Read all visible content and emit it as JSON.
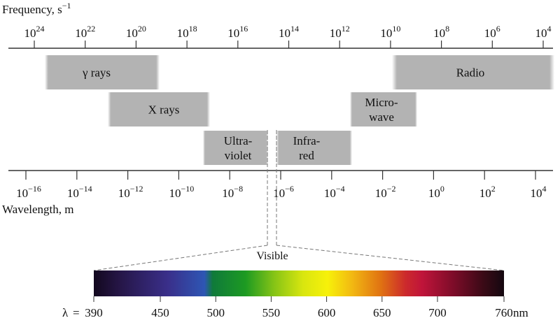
{
  "frequency_axis": {
    "label_main": "Frequency, s",
    "label_exp": "−1",
    "ticks": [
      {
        "base": "10",
        "exp": "24"
      },
      {
        "base": "10",
        "exp": "22"
      },
      {
        "base": "10",
        "exp": "20"
      },
      {
        "base": "10",
        "exp": "18"
      },
      {
        "base": "10",
        "exp": "16"
      },
      {
        "base": "10",
        "exp": "14"
      },
      {
        "base": "10",
        "exp": "12"
      },
      {
        "base": "10",
        "exp": "10"
      },
      {
        "base": "10",
        "exp": "8"
      },
      {
        "base": "10",
        "exp": "6"
      },
      {
        "base": "10",
        "exp": "4"
      }
    ]
  },
  "wavelength_axis": {
    "label": "Wavelength, m",
    "ticks": [
      {
        "base": "10",
        "exp": "−16"
      },
      {
        "base": "10",
        "exp": "−14"
      },
      {
        "base": "10",
        "exp": "−12"
      },
      {
        "base": "10",
        "exp": "−10"
      },
      {
        "base": "10",
        "exp": "−8"
      },
      {
        "base": "10",
        "exp": "−6"
      },
      {
        "base": "10",
        "exp": "−4"
      },
      {
        "base": "10",
        "exp": "−2"
      },
      {
        "base": "10",
        "exp": "0"
      },
      {
        "base": "10",
        "exp": "2"
      },
      {
        "base": "10",
        "exp": "4"
      }
    ]
  },
  "bands": [
    {
      "id": "gamma",
      "lines": [
        "γ rays"
      ],
      "row": 0
    },
    {
      "id": "xray",
      "lines": [
        "X rays"
      ],
      "row": 1
    },
    {
      "id": "uv",
      "lines": [
        "Ultra-",
        "violet"
      ],
      "row": 2
    },
    {
      "id": "ir",
      "lines": [
        "Infra-",
        "red"
      ],
      "row": 2
    },
    {
      "id": "micro",
      "lines": [
        "Micro-",
        "wave"
      ],
      "row": 1
    },
    {
      "id": "radio",
      "lines": [
        "Radio"
      ],
      "row": 0
    }
  ],
  "band_color": "#b3b3b3",
  "visible": {
    "label": "Visible",
    "lambda_symbol": "λ",
    "lambda_color": "#cc2a8a",
    "equals": "=",
    "ticks": [
      "390",
      "450",
      "500",
      "550",
      "600",
      "650",
      "700",
      "760"
    ],
    "unit": "nm"
  }
}
